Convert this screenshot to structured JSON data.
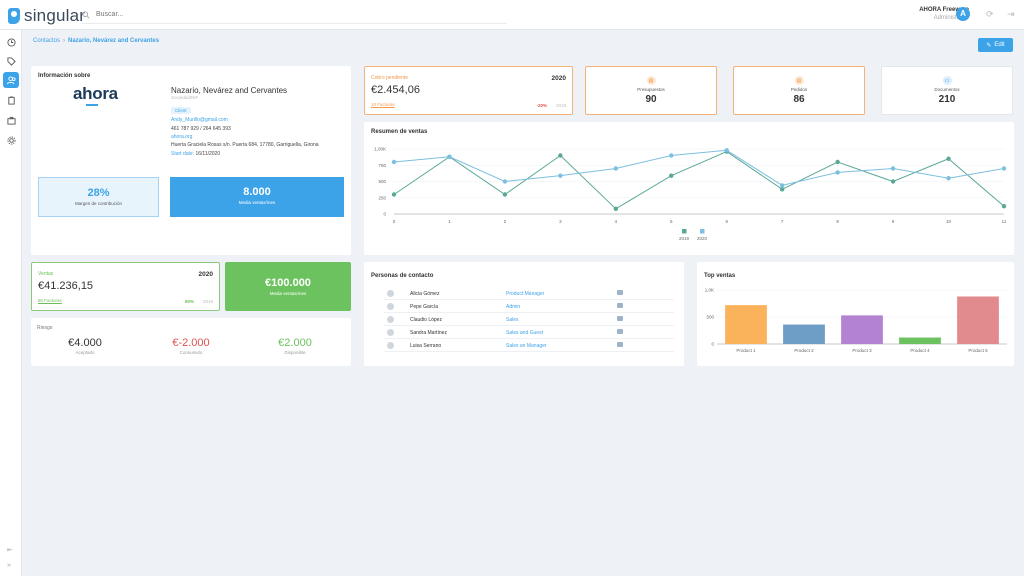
{
  "app": {
    "name": "singular"
  },
  "search": {
    "placeholder": "Buscar..."
  },
  "user": {
    "name": "AHORA Freeware",
    "role": "Administrator",
    "initial": "A"
  },
  "breadcrumb": {
    "root": "Contactos",
    "current": "Nazario, Nevárez and Cervantes"
  },
  "edit_label": "Edit",
  "info": {
    "title": "Información sobre",
    "logo_text": "ahora",
    "company": "Nazario, Nevárez and Cervantes",
    "subtitle": "Sociedad/NIF",
    "tag": "Client",
    "email": "Andy_Murillo@gmail.com",
    "phones": "461 787 929 / 264 645 393",
    "website": "ahora.org",
    "address": "Huerta Graciela Rosas s/n. Puerta 684, 17780, Garriguella, Girona",
    "start_label": "Start date:",
    "start_date": "16/11/2020",
    "margin_value": "28%",
    "margin_label": "Margen de contribución",
    "media_value": "8.000",
    "media_label": "Media ventas/mes"
  },
  "cobro": {
    "label": "Cobro pendiente",
    "year": "2020",
    "amount": "€2.454,06",
    "facturas": "10 Facturas",
    "pct": "-20%",
    "prev_year": "2019"
  },
  "stats": [
    {
      "label": "Presupuestos",
      "value": "90",
      "icon": "document-icon"
    },
    {
      "label": "Pedidos",
      "value": "86",
      "icon": "order-icon"
    },
    {
      "label": "Documentos",
      "value": "210",
      "icon": "folder-icon"
    }
  ],
  "resumen": {
    "title": "Resumen de ventas"
  },
  "ventas": {
    "label": "Ventas",
    "year": "2020",
    "amount": "€41.236,15",
    "facturas": "80 Facturas",
    "pct": "80%",
    "prev_year": "2019"
  },
  "green_kpi": {
    "value": "€100.000",
    "label": "Media ventas/mes"
  },
  "riesgo": {
    "title": "Riesgo",
    "items": [
      {
        "value": "€4.000",
        "label": "Aceptado",
        "color": "#333333"
      },
      {
        "value": "€-2.000",
        "label": "Consumido",
        "color": "#e05050"
      },
      {
        "value": "€2.000",
        "label": "Disponible",
        "color": "#6cc25e"
      }
    ]
  },
  "contacts": {
    "title": "Personas de contacto",
    "rows": [
      {
        "name": "Alicia Gómez",
        "role": "Product Manager"
      },
      {
        "name": "Pepe García",
        "role": "Admin"
      },
      {
        "name": "Claudio López",
        "role": "Sales"
      },
      {
        "name": "Sandra Martínez",
        "role": "Sales and Guest"
      },
      {
        "name": "Luisa Serrano",
        "role": "Sales an Manager"
      }
    ]
  },
  "topv": {
    "title": "Top ventas"
  },
  "chart_data": [
    {
      "type": "line",
      "title": "Resumen de ventas",
      "x": [
        0,
        1,
        2,
        3,
        4,
        5,
        6,
        7,
        8,
        9,
        10,
        11
      ],
      "ylim": [
        0,
        1000
      ],
      "yticks": [
        "0",
        "250",
        "500",
        "750",
        "1,00K"
      ],
      "series": [
        {
          "name": "2019",
          "color": "#5aa897",
          "values": [
            300,
            880,
            300,
            900,
            80,
            590,
            960,
            380,
            800,
            500,
            850,
            120
          ]
        },
        {
          "name": "2020",
          "color": "#7cbfe0",
          "values": [
            800,
            880,
            500,
            590,
            700,
            900,
            980,
            440,
            640,
            700,
            550,
            700
          ]
        }
      ]
    },
    {
      "type": "bar",
      "title": "Top ventas",
      "categories": [
        "Product 1",
        "Product 2",
        "Product 3",
        "Product 4",
        "Product 5"
      ],
      "values": [
        720,
        360,
        530,
        120,
        880
      ],
      "colors": [
        "#fbb35b",
        "#6e9ec6",
        "#b383d2",
        "#6cc25e",
        "#e28b8f"
      ],
      "ylim": [
        0,
        1000
      ],
      "yticks": [
        "0",
        "500",
        "1,0K"
      ]
    }
  ]
}
